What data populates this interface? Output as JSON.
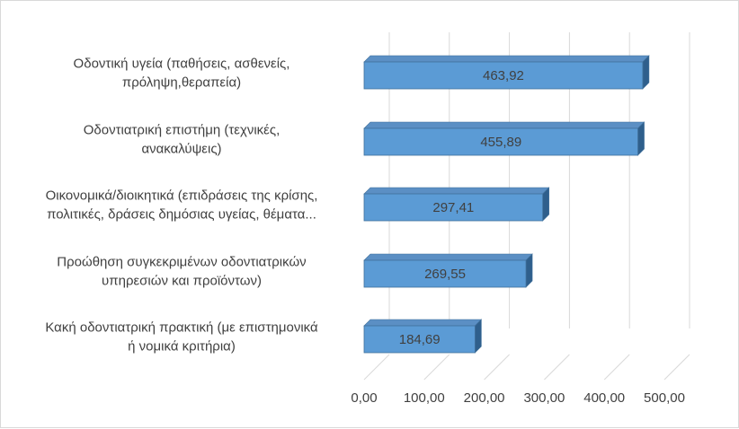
{
  "chart_data": {
    "type": "bar",
    "orientation": "horizontal",
    "style": "3d",
    "categories": [
      [
        "Οδοντική υγεία (παθήσεις, ασθενείς,",
        "πρόληψη,θεραπεία)"
      ],
      [
        "Οδοντιατρική επιστήμη (τεχνικές,",
        "ανακαλύψεις)"
      ],
      [
        "Οικονομικά/διοικητικά (επιδράσεις της κρίσης,",
        "πολιτικές, δράσεις δημόσιας υγείας, θέματα..."
      ],
      [
        "Προώθηση συγκεκριμένων οδοντιατρικών",
        "υπηρεσιών και προϊόντων)"
      ],
      [
        "Κακή οδοντιατρική πρακτική (με επιστημονικά",
        "ή νομικά κριτήρια)"
      ]
    ],
    "values": [
      463.92,
      455.89,
      297.41,
      269.55,
      184.69
    ],
    "data_labels": [
      "463,92",
      "455,89",
      "297,41",
      "269,55",
      "184,69"
    ],
    "x_ticks": [
      "0,00",
      "100,00",
      "200,00",
      "300,00",
      "400,00",
      "500,00"
    ],
    "xlim": [
      0,
      500
    ],
    "grid": true,
    "legend": "none",
    "colors": {
      "bar_front": "#5b9bd5",
      "bar_top": "#5b8fc4",
      "bar_side": "#2f5f8c",
      "bar_edge": "#41719c",
      "grid": "#d9d9d9",
      "text": "#404040"
    }
  }
}
